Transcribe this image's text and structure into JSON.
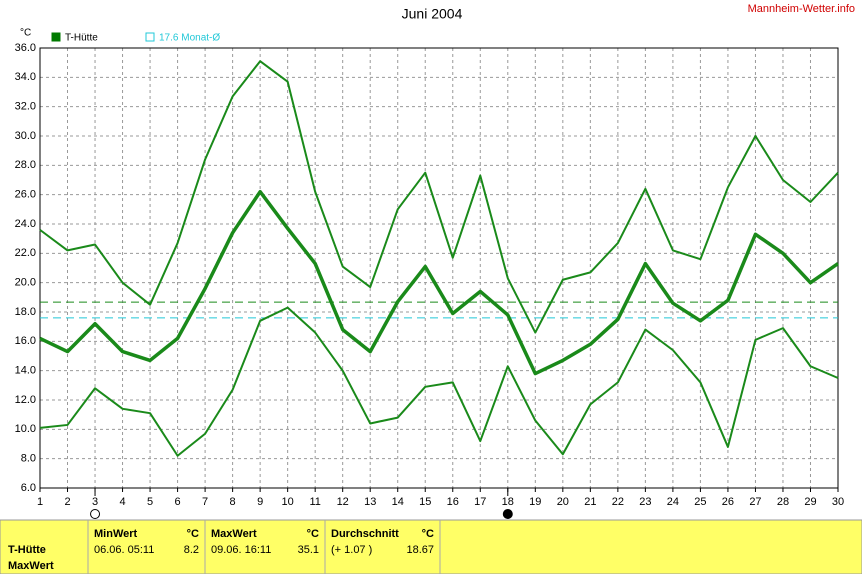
{
  "chart_data": {
    "type": "line",
    "title": "Juni 2004",
    "source": "Mannheim-Wetter.info",
    "y_unit": "°C",
    "legend": [
      {
        "label": "T-Hütte",
        "color": "#007a00",
        "shape": "filled"
      },
      {
        "label": "17.6 Monat-Ø",
        "color": "#22c8d8",
        "shape": "open"
      }
    ],
    "x": [
      1,
      2,
      3,
      4,
      5,
      6,
      7,
      8,
      9,
      10,
      11,
      12,
      13,
      14,
      15,
      16,
      17,
      18,
      19,
      20,
      21,
      22,
      23,
      24,
      25,
      26,
      27,
      28,
      29,
      30
    ],
    "xlim": [
      1,
      30
    ],
    "series": [
      {
        "color": "#1a8a1a",
        "width": 2,
        "values": [
          23.6,
          22.2,
          22.6,
          20.0,
          18.5,
          22.7,
          28.4,
          32.7,
          35.1,
          33.7,
          26.2,
          21.1,
          19.7,
          25.0,
          27.5,
          21.7,
          27.3,
          20.3,
          16.6,
          20.2,
          20.7,
          22.7,
          26.4,
          22.2,
          21.6,
          26.5,
          30.0,
          27.0,
          25.5,
          27.5
        ]
      },
      {
        "color": "#1a8a1a",
        "width": 3.5,
        "values": [
          16.2,
          15.3,
          17.2,
          15.3,
          14.7,
          16.2,
          19.6,
          23.4,
          26.2,
          23.7,
          21.3,
          16.8,
          15.3,
          18.7,
          21.1,
          17.9,
          19.4,
          17.8,
          13.8,
          14.7,
          15.8,
          17.5,
          21.3,
          18.6,
          17.4,
          18.8,
          23.3,
          22.0,
          20.0,
          21.3
        ]
      },
      {
        "color": "#1a8a1a",
        "width": 2,
        "values": [
          10.1,
          10.3,
          12.8,
          11.4,
          11.1,
          8.2,
          9.7,
          12.7,
          17.4,
          18.3,
          16.6,
          14.0,
          10.4,
          10.8,
          12.9,
          13.2,
          9.2,
          14.3,
          10.6,
          8.3,
          11.7,
          13.2,
          16.8,
          15.4,
          13.2,
          8.8,
          16.1,
          16.9,
          14.3,
          13.5
        ]
      }
    ],
    "reference_lines": [
      {
        "value": 18.67,
        "color": "#1a8a1a"
      },
      {
        "value": 17.6,
        "color": "#22c8d8"
      }
    ],
    "moon_markers": [
      {
        "x": 3,
        "filled": false
      },
      {
        "x": 18,
        "filled": true
      }
    ],
    "ylim": [
      6,
      36
    ],
    "yticks": [
      {
        "value": 6,
        "label": "6.0"
      },
      {
        "value": 8,
        "label": "8.0"
      },
      {
        "value": 10,
        "label": "10.0"
      },
      {
        "value": 12,
        "label": "12.0"
      },
      {
        "value": 14,
        "label": "14.0"
      },
      {
        "value": 16,
        "label": "16.0"
      },
      {
        "value": 18,
        "label": "18.0"
      },
      {
        "value": 20,
        "label": "20.0"
      },
      {
        "value": 22,
        "label": "22.0"
      },
      {
        "value": 24,
        "label": "24.0"
      },
      {
        "value": 26,
        "label": "26.0"
      },
      {
        "value": 28,
        "label": "28.0"
      },
      {
        "value": 30,
        "label": "30.0"
      },
      {
        "value": 32,
        "label": "32.0"
      },
      {
        "value": 34,
        "label": "34.0"
      },
      {
        "value": 36,
        "label": "36.0"
      }
    ],
    "grid": true
  },
  "table": {
    "row_labels": [
      "T-Hütte",
      "MaxWert"
    ],
    "columns": [
      {
        "header": "MinWert",
        "unit": "°C",
        "cells": [
          "06.06.  05:11",
          "8.2"
        ]
      },
      {
        "header": "MaxWert",
        "unit": "°C",
        "cells": [
          "09.06.  16:11",
          "35.1"
        ]
      },
      {
        "header": "Durchschnitt",
        "unit": "°C",
        "cells": [
          "(+ 1.07 )",
          "18.67"
        ]
      }
    ]
  }
}
